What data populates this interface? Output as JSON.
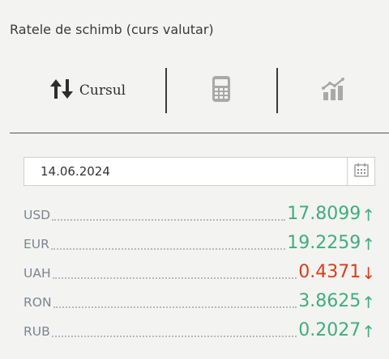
{
  "widget": {
    "title": "Ratele de schimb (curs valutar)"
  },
  "tabs": [
    {
      "label": "Cursul",
      "icon": "up-down-arrows-icon",
      "active": true
    },
    {
      "label": "",
      "icon": "calculator-icon",
      "active": false
    },
    {
      "label": "",
      "icon": "bar-chart-trend-icon",
      "active": false
    }
  ],
  "date_field": {
    "value": "14.06.2024",
    "icon": "calendar-icon"
  },
  "rates": [
    {
      "currency": "USD",
      "value": "17.8099",
      "trend": "up",
      "arrow": "↑"
    },
    {
      "currency": "EUR",
      "value": "19.2259",
      "trend": "up",
      "arrow": "↑"
    },
    {
      "currency": "UAH",
      "value": "0.4371",
      "trend": "down",
      "arrow": "↓"
    },
    {
      "currency": "RON",
      "value": "3.8625",
      "trend": "up",
      "arrow": "↑"
    },
    {
      "currency": "RUB",
      "value": "0.2027",
      "trend": "up",
      "arrow": "↑"
    }
  ],
  "colors": {
    "up": "#41ad7d",
    "down": "#e03b17",
    "background": "#f3f3f2"
  }
}
